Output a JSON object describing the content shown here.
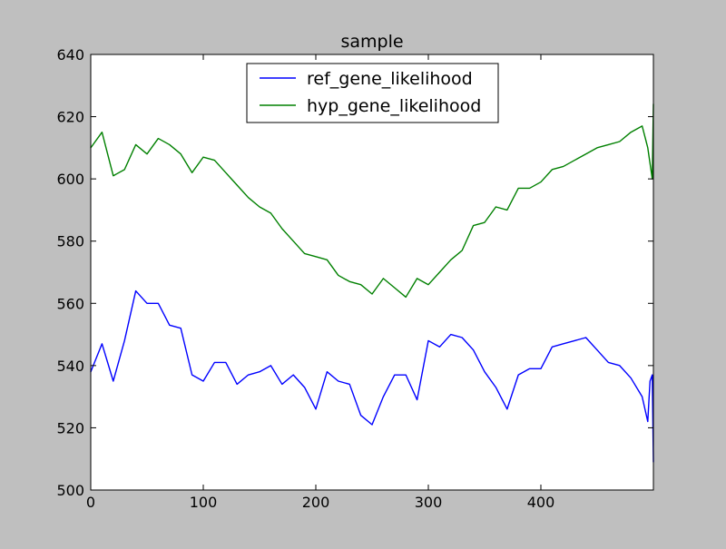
{
  "figure": {
    "background_color": "#bfbfbf",
    "axes_background_color": "#ffffff"
  },
  "chart_data": {
    "type": "line",
    "title": "sample",
    "xlabel": "",
    "ylabel": "",
    "xlim": [
      0,
      500
    ],
    "ylim": [
      500,
      640
    ],
    "xticks": [
      0,
      100,
      200,
      300,
      400
    ],
    "yticks": [
      500,
      520,
      540,
      560,
      580,
      600,
      620,
      640
    ],
    "grid": false,
    "legend_position": "upper center",
    "series": [
      {
        "name": "ref_gene_likelihood",
        "color": "#0000ff",
        "sample_step": 20,
        "values": [
          538,
          547,
          535,
          548,
          564,
          560,
          560,
          553,
          552,
          537,
          535,
          541,
          541,
          534,
          537,
          538,
          540,
          534,
          537,
          533,
          526,
          538,
          535,
          534,
          524,
          521,
          530,
          537,
          537,
          529,
          548,
          546,
          550,
          549,
          545,
          538,
          533,
          526,
          537,
          539,
          539,
          546,
          547,
          548,
          549,
          545,
          541,
          540,
          536,
          530,
          522,
          535,
          537,
          509
        ],
        "x": [
          0,
          10,
          20,
          30,
          40,
          50,
          60,
          70,
          80,
          90,
          100,
          110,
          120,
          130,
          140,
          150,
          160,
          170,
          180,
          190,
          200,
          210,
          220,
          230,
          240,
          250,
          260,
          270,
          280,
          290,
          300,
          310,
          320,
          330,
          340,
          350,
          360,
          370,
          380,
          390,
          400,
          410,
          420,
          430,
          440,
          450,
          460,
          470,
          480,
          490,
          495,
          497,
          499,
          500
        ]
      },
      {
        "name": "hyp_gene_likelihood",
        "color": "#008000",
        "sample_step": 20,
        "values": [
          610,
          615,
          601,
          603,
          611,
          608,
          613,
          611,
          608,
          602,
          607,
          606,
          602,
          598,
          594,
          591,
          589,
          584,
          580,
          576,
          575,
          574,
          569,
          567,
          566,
          563,
          568,
          565,
          562,
          568,
          566,
          570,
          574,
          577,
          585,
          586,
          591,
          590,
          597,
          597,
          599,
          603,
          604,
          606,
          608,
          610,
          611,
          612,
          615,
          617,
          610,
          605,
          600,
          624
        ],
        "x": [
          0,
          10,
          20,
          30,
          40,
          50,
          60,
          70,
          80,
          90,
          100,
          110,
          120,
          130,
          140,
          150,
          160,
          170,
          180,
          190,
          200,
          210,
          220,
          230,
          240,
          250,
          260,
          270,
          280,
          290,
          300,
          310,
          320,
          330,
          340,
          350,
          360,
          370,
          380,
          390,
          400,
          410,
          420,
          430,
          440,
          450,
          460,
          470,
          480,
          490,
          495,
          497,
          499,
          500
        ]
      }
    ]
  }
}
